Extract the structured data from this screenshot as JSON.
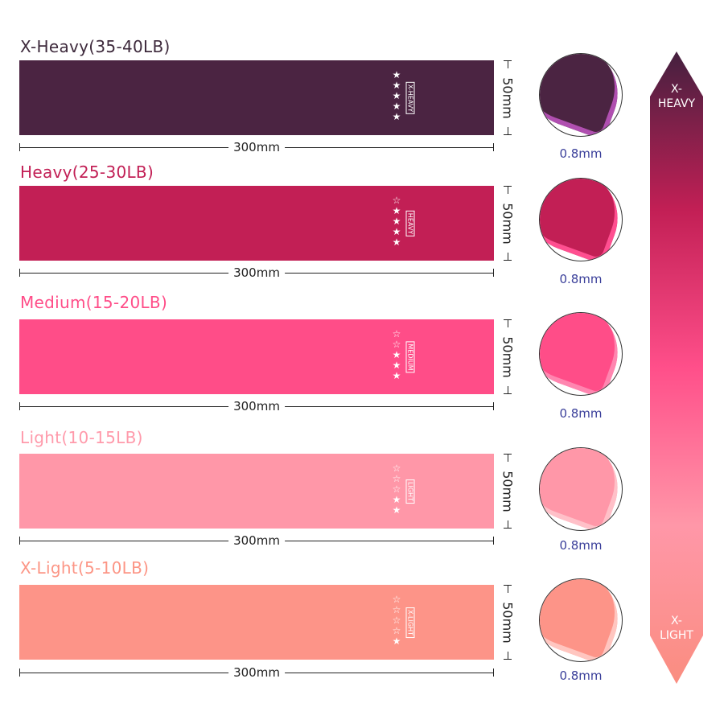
{
  "bands": [
    {
      "title": "X-Heavy(35-40LB)",
      "tag": "X-HEAVY",
      "stars_filled": 5,
      "stars_total": 5,
      "color": "#4b2442",
      "title_color": "#3e2a3c",
      "inner_color": "#b04fb0",
      "length": "300mm",
      "width": "50mm",
      "thickness": "0.8mm"
    },
    {
      "title": "Heavy(25-30LB)",
      "tag": "HEAVY",
      "stars_filled": 4,
      "stars_total": 5,
      "color": "#c21f55",
      "title_color": "#c21f55",
      "inner_color": "#ff4f90",
      "length": "300mm",
      "width": "50mm",
      "thickness": "0.8mm"
    },
    {
      "title": "Medium(15-20LB)",
      "tag": "MEDIUM",
      "stars_filled": 3,
      "stars_total": 5,
      "color": "#ff4d88",
      "title_color": "#ff4d88",
      "inner_color": "#ff86b0",
      "length": "300mm",
      "width": "50mm",
      "thickness": "0.8mm"
    },
    {
      "title": "Light(10-15LB)",
      "tag": "LIGHT",
      "stars_filled": 2,
      "stars_total": 5,
      "color": "#ff97a8",
      "title_color": "#ff9aab",
      "inner_color": "#ffc0c8",
      "length": "300mm",
      "width": "50mm",
      "thickness": "0.8mm"
    },
    {
      "title": "X-Light(5-10LB)",
      "tag": "X-LIGHT",
      "stars_filled": 1,
      "stars_total": 5,
      "color": "#fd9488",
      "title_color": "#fc9585",
      "inner_color": "#ffc6c0",
      "length": "300mm",
      "width": "50mm",
      "thickness": "0.8mm"
    }
  ],
  "scale": {
    "top_label": "X-\nHEAVY",
    "bottom_label": "X-\nLIGHT",
    "gradient": [
      "#44203f",
      "#c21f55",
      "#ff4f8a",
      "#ff97a8",
      "#fa8d80"
    ]
  }
}
